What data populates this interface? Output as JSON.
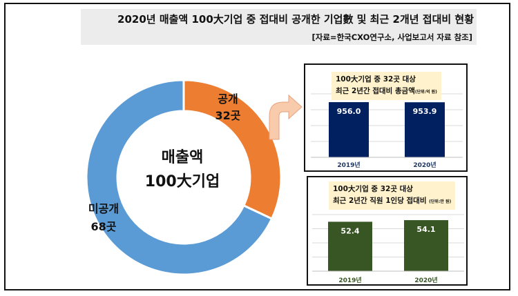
{
  "header": {
    "title": "2020년 매출액 100大기업 중 접대비 공개한 기업數 및 최근 2개년 접대비 현황",
    "source": "[자료=한국CXO연구소, 사업보고서 자료 참조]"
  },
  "colors": {
    "disclosed": "#ed7d31",
    "undisclosed": "#5b9bd5",
    "bar_top": "#002060",
    "bar_bottom": "#375623",
    "arrow": "#f8cbad"
  },
  "chart_data": [
    {
      "type": "pie",
      "title": "",
      "center_label": [
        "매출액",
        "100大기업"
      ],
      "slices": [
        {
          "label": "공개",
          "value_label": "32곳",
          "value": 32
        },
        {
          "label": "미공개",
          "value_label": "68곳",
          "value": 68
        }
      ]
    },
    {
      "type": "bar",
      "title": [
        "100大기업 중 32곳 대상",
        "최근 2년간 접대비 총금액"
      ],
      "unit": "(단위:억 원)",
      "categories": [
        "2019년",
        "2020년"
      ],
      "values": [
        956.0,
        953.9
      ],
      "value_labels": [
        "956.0",
        "953.9"
      ],
      "ylim": [
        0,
        1100
      ]
    },
    {
      "type": "bar",
      "title": [
        "100大기업 중 32곳 대상",
        "최근 2년간 직원 1인당 접대비"
      ],
      "unit": "(단위:만 원)",
      "categories": [
        "2019년",
        "2020년"
      ],
      "values": [
        52.4,
        54.1
      ],
      "value_labels": [
        "52.4",
        "54.1"
      ],
      "ylim": [
        0,
        60
      ]
    }
  ]
}
